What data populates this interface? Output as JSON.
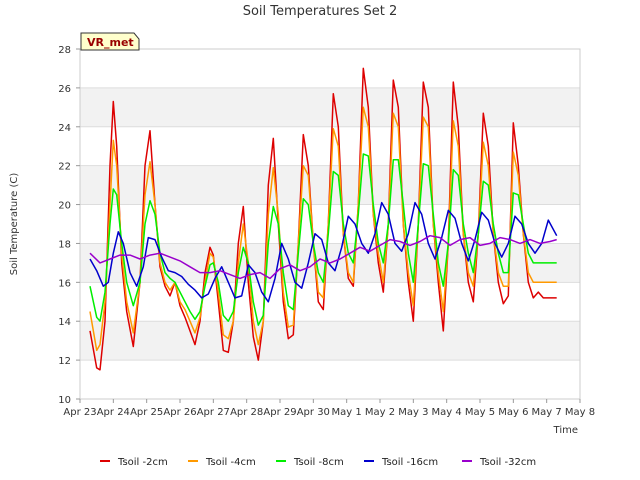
{
  "chart_data": {
    "type": "line",
    "title": "Soil Temperatures Set 2",
    "xlabel": "Time",
    "ylabel": "Soil Temperature (C)",
    "ylim": [
      10,
      28
    ],
    "yticks": [
      10,
      12,
      14,
      16,
      18,
      20,
      22,
      24,
      26,
      28
    ],
    "xlim": [
      0,
      15
    ],
    "xtick_labels": [
      "Apr 23",
      "Apr 24",
      "Apr 25",
      "Apr 26",
      "Apr 27",
      "Apr 28",
      "Apr 29",
      "Apr 30",
      "May 1",
      "May 2",
      "May 3",
      "May 4",
      "May 5",
      "May 6",
      "May 7",
      "May 8"
    ],
    "background_bands": true,
    "legend_position": "bottom",
    "station_badge": "VR_met",
    "series": [
      {
        "name": "Tsoil -2cm",
        "color": "#dd0000",
        "x": [
          0.3,
          0.5,
          0.6,
          0.75,
          0.9,
          1.0,
          1.1,
          1.25,
          1.4,
          1.6,
          1.8,
          1.95,
          2.1,
          2.25,
          2.4,
          2.55,
          2.7,
          2.85,
          3.0,
          3.15,
          3.3,
          3.45,
          3.6,
          3.75,
          3.9,
          4.0,
          4.15,
          4.3,
          4.45,
          4.6,
          4.75,
          4.9,
          5.05,
          5.2,
          5.35,
          5.5,
          5.65,
          5.8,
          5.95,
          6.1,
          6.25,
          6.4,
          6.55,
          6.7,
          6.85,
          7.0,
          7.15,
          7.3,
          7.45,
          7.6,
          7.75,
          7.9,
          8.05,
          8.2,
          8.35,
          8.5,
          8.65,
          8.8,
          8.95,
          9.1,
          9.25,
          9.4,
          9.55,
          9.7,
          9.85,
          10.0,
          10.15,
          10.3,
          10.45,
          10.6,
          10.75,
          10.9,
          11.05,
          11.2,
          11.35,
          11.5,
          11.65,
          11.8,
          11.95,
          12.1,
          12.25,
          12.4,
          12.55,
          12.7,
          12.85,
          13.0,
          13.15,
          13.3,
          13.45,
          13.6,
          13.75,
          13.9,
          14.05,
          14.2,
          14.3
        ],
        "values": [
          13.5,
          11.6,
          11.5,
          14.0,
          22.0,
          25.3,
          23.0,
          17.0,
          14.5,
          12.7,
          16.0,
          22.0,
          23.8,
          20.0,
          16.8,
          15.8,
          15.3,
          16.0,
          14.8,
          14.2,
          13.5,
          12.8,
          14.0,
          16.5,
          17.8,
          17.4,
          15.0,
          12.5,
          12.4,
          14.0,
          18.0,
          19.9,
          16.0,
          13.2,
          12.0,
          14.0,
          21.0,
          23.4,
          19.0,
          15.0,
          13.1,
          13.3,
          18.0,
          23.6,
          22.0,
          18.0,
          15.0,
          14.6,
          19.0,
          25.7,
          24.0,
          18.5,
          16.2,
          15.8,
          20.0,
          27.0,
          25.0,
          19.5,
          17.0,
          15.5,
          19.0,
          26.4,
          25.0,
          19.0,
          16.0,
          14.0,
          19.0,
          26.3,
          25.0,
          19.0,
          16.0,
          13.5,
          18.0,
          26.3,
          24.0,
          18.5,
          16.0,
          15.0,
          18.5,
          24.7,
          23.0,
          18.5,
          16.0,
          14.9,
          15.3,
          24.2,
          22.0,
          18.5,
          16.0,
          15.2,
          15.5,
          15.2,
          15.2,
          15.2,
          15.2
        ]
      },
      {
        "name": "Tsoil -4cm",
        "color": "#ff9900",
        "x": [
          0.3,
          0.5,
          0.6,
          0.75,
          0.9,
          1.0,
          1.1,
          1.25,
          1.4,
          1.6,
          1.8,
          1.95,
          2.1,
          2.25,
          2.4,
          2.55,
          2.7,
          2.85,
          3.0,
          3.15,
          3.3,
          3.45,
          3.6,
          3.75,
          3.9,
          4.0,
          4.15,
          4.3,
          4.45,
          4.6,
          4.75,
          4.9,
          5.05,
          5.2,
          5.35,
          5.5,
          5.65,
          5.8,
          5.95,
          6.1,
          6.25,
          6.4,
          6.55,
          6.7,
          6.85,
          7.0,
          7.15,
          7.3,
          7.45,
          7.6,
          7.75,
          7.9,
          8.05,
          8.2,
          8.35,
          8.5,
          8.65,
          8.8,
          8.95,
          9.1,
          9.25,
          9.4,
          9.55,
          9.7,
          9.85,
          10.0,
          10.15,
          10.3,
          10.45,
          10.6,
          10.75,
          10.9,
          11.05,
          11.2,
          11.35,
          11.5,
          11.65,
          11.8,
          11.95,
          12.1,
          12.25,
          12.4,
          12.55,
          12.7,
          12.85,
          13.0,
          13.15,
          13.3,
          13.45,
          13.6,
          13.75,
          13.9,
          14.05,
          14.2,
          14.3
        ],
        "values": [
          14.5,
          12.5,
          12.8,
          15.0,
          20.0,
          23.3,
          22.0,
          17.5,
          15.0,
          13.4,
          16.0,
          20.5,
          22.2,
          20.0,
          17.0,
          16.0,
          15.6,
          16.0,
          15.0,
          14.6,
          14.0,
          13.4,
          14.2,
          16.0,
          17.5,
          17.3,
          15.5,
          13.3,
          13.1,
          14.0,
          17.0,
          19.0,
          17.0,
          14.0,
          12.8,
          14.0,
          19.5,
          21.9,
          19.5,
          15.5,
          13.7,
          13.8,
          18.0,
          22.0,
          21.5,
          18.0,
          15.5,
          15.2,
          19.0,
          23.9,
          23.0,
          18.5,
          16.5,
          16.0,
          20.0,
          25.0,
          24.0,
          19.5,
          17.5,
          16.0,
          19.0,
          24.7,
          24.0,
          19.0,
          16.5,
          14.8,
          19.0,
          24.5,
          24.0,
          19.0,
          16.5,
          14.5,
          18.0,
          24.3,
          23.0,
          18.5,
          16.5,
          15.8,
          18.5,
          23.2,
          22.0,
          18.5,
          16.5,
          15.8,
          15.8,
          22.7,
          21.5,
          18.5,
          16.5,
          16.0,
          16.0,
          16.0,
          16.0,
          16.0,
          16.0
        ]
      },
      {
        "name": "Tsoil -8cm",
        "color": "#00ee00",
        "x": [
          0.3,
          0.5,
          0.6,
          0.75,
          0.9,
          1.0,
          1.1,
          1.25,
          1.4,
          1.6,
          1.8,
          1.95,
          2.1,
          2.25,
          2.4,
          2.55,
          2.7,
          2.85,
          3.0,
          3.15,
          3.3,
          3.45,
          3.6,
          3.75,
          3.9,
          4.0,
          4.15,
          4.3,
          4.45,
          4.6,
          4.75,
          4.9,
          5.05,
          5.2,
          5.35,
          5.5,
          5.65,
          5.8,
          5.95,
          6.1,
          6.25,
          6.4,
          6.55,
          6.7,
          6.85,
          7.0,
          7.15,
          7.3,
          7.45,
          7.6,
          7.75,
          7.9,
          8.05,
          8.2,
          8.35,
          8.5,
          8.65,
          8.8,
          8.95,
          9.1,
          9.25,
          9.4,
          9.55,
          9.7,
          9.85,
          10.0,
          10.15,
          10.3,
          10.45,
          10.6,
          10.75,
          10.9,
          11.05,
          11.2,
          11.35,
          11.5,
          11.65,
          11.8,
          11.95,
          12.1,
          12.25,
          12.4,
          12.55,
          12.7,
          12.85,
          13.0,
          13.15,
          13.3,
          13.45,
          13.6,
          13.75,
          13.9,
          14.05,
          14.2,
          14.3
        ],
        "values": [
          15.8,
          14.2,
          14.0,
          15.5,
          19.0,
          20.8,
          20.5,
          18.0,
          16.0,
          14.8,
          16.0,
          19.0,
          20.2,
          19.5,
          17.5,
          16.5,
          16.2,
          16.0,
          15.5,
          15.0,
          14.5,
          14.1,
          14.5,
          15.8,
          16.9,
          17.0,
          16.0,
          14.3,
          14.0,
          14.5,
          16.5,
          17.8,
          17.0,
          15.0,
          13.8,
          14.3,
          18.0,
          19.9,
          19.0,
          16.5,
          14.8,
          14.6,
          17.5,
          20.3,
          20.0,
          18.0,
          16.5,
          16.0,
          18.5,
          21.7,
          21.5,
          19.0,
          17.5,
          17.0,
          19.5,
          22.6,
          22.5,
          20.0,
          18.0,
          17.0,
          19.0,
          22.3,
          22.3,
          20.0,
          17.5,
          16.0,
          19.0,
          22.1,
          22.0,
          19.5,
          17.0,
          15.8,
          18.0,
          21.8,
          21.5,
          19.0,
          17.5,
          16.5,
          18.5,
          21.2,
          21.0,
          19.0,
          17.5,
          16.5,
          16.5,
          20.6,
          20.5,
          19.0,
          17.5,
          17.0,
          17.0,
          17.0,
          17.0,
          17.0,
          17.0
        ]
      },
      {
        "name": "Tsoil -16cm",
        "color": "#0000cc",
        "x": [
          0.3,
          0.5,
          0.7,
          0.85,
          1.0,
          1.15,
          1.3,
          1.5,
          1.7,
          1.9,
          2.05,
          2.25,
          2.45,
          2.65,
          2.85,
          3.05,
          3.25,
          3.45,
          3.65,
          3.85,
          4.05,
          4.25,
          4.45,
          4.65,
          4.85,
          5.05,
          5.25,
          5.45,
          5.65,
          5.85,
          6.05,
          6.25,
          6.45,
          6.65,
          6.85,
          7.05,
          7.25,
          7.45,
          7.65,
          7.85,
          8.05,
          8.25,
          8.45,
          8.65,
          8.85,
          9.05,
          9.25,
          9.45,
          9.65,
          9.85,
          10.05,
          10.25,
          10.45,
          10.65,
          10.85,
          11.05,
          11.25,
          11.45,
          11.65,
          11.85,
          12.05,
          12.25,
          12.45,
          12.65,
          12.85,
          13.05,
          13.25,
          13.45,
          13.65,
          13.85,
          14.05,
          14.3
        ],
        "values": [
          17.2,
          16.6,
          15.8,
          16.0,
          17.5,
          18.6,
          18.0,
          16.5,
          15.8,
          16.8,
          18.3,
          18.2,
          17.3,
          16.6,
          16.5,
          16.3,
          15.9,
          15.6,
          15.2,
          15.4,
          16.2,
          16.8,
          16.0,
          15.2,
          15.3,
          16.9,
          16.5,
          15.5,
          15.0,
          16.2,
          18.0,
          17.2,
          16.0,
          15.7,
          17.0,
          18.5,
          18.2,
          17.0,
          16.6,
          17.8,
          19.4,
          19.0,
          18.0,
          17.5,
          18.5,
          20.1,
          19.5,
          18.0,
          17.6,
          18.5,
          20.1,
          19.5,
          18.0,
          17.2,
          18.3,
          19.7,
          19.3,
          18.0,
          17.1,
          18.2,
          19.6,
          19.2,
          18.0,
          17.3,
          18.0,
          19.4,
          19.0,
          18.0,
          17.5,
          18.0,
          19.2,
          18.4
        ]
      },
      {
        "name": "Tsoil -32cm",
        "color": "#9900cc",
        "x": [
          0.3,
          0.6,
          0.9,
          1.2,
          1.5,
          1.8,
          2.1,
          2.4,
          2.7,
          3.0,
          3.3,
          3.6,
          3.9,
          4.2,
          4.5,
          4.8,
          5.1,
          5.4,
          5.7,
          6.0,
          6.3,
          6.6,
          6.9,
          7.2,
          7.5,
          7.8,
          8.1,
          8.4,
          8.7,
          9.0,
          9.3,
          9.6,
          9.9,
          10.2,
          10.5,
          10.8,
          11.1,
          11.4,
          11.7,
          12.0,
          12.3,
          12.6,
          12.9,
          13.2,
          13.5,
          13.8,
          14.1,
          14.3
        ],
        "values": [
          17.5,
          17.0,
          17.2,
          17.4,
          17.4,
          17.2,
          17.4,
          17.5,
          17.3,
          17.1,
          16.8,
          16.5,
          16.5,
          16.6,
          16.4,
          16.2,
          16.4,
          16.5,
          16.2,
          16.7,
          16.9,
          16.6,
          16.8,
          17.2,
          17.0,
          17.2,
          17.5,
          17.8,
          17.6,
          17.9,
          18.2,
          18.1,
          17.9,
          18.1,
          18.4,
          18.3,
          17.9,
          18.2,
          18.3,
          17.9,
          18.0,
          18.3,
          18.2,
          18.0,
          18.2,
          18.0,
          18.1,
          18.2
        ]
      }
    ]
  }
}
